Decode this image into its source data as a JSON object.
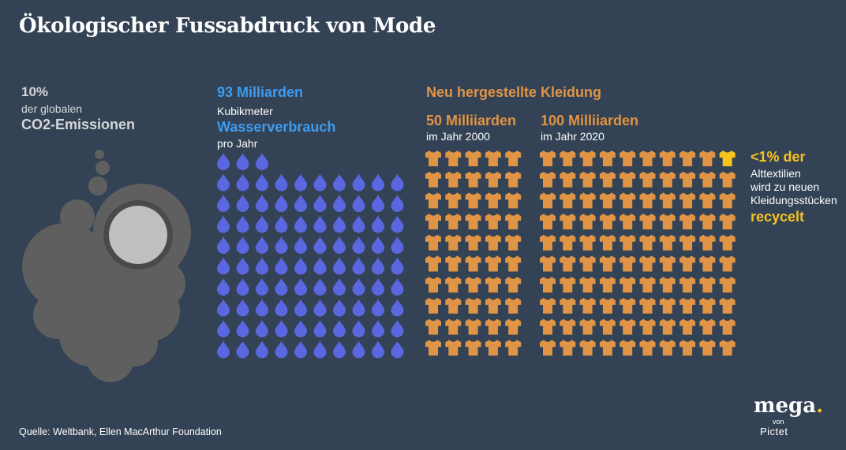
{
  "title": "Ökologischer Fussabdruck von Mode",
  "co2": {
    "percent": "10%",
    "subtitle": "der globalen",
    "label": "CO2-Emissionen",
    "icon": "smoke-cloud-icon"
  },
  "water": {
    "amount": "93 Milliarden",
    "unit": "Kubikmeter",
    "label": "Wasserverbrauch",
    "period": "pro Jahr",
    "icon": "water-drop-icon",
    "drops_top_row": 3,
    "drops_full_rows": 9,
    "drops_per_row": 10
  },
  "clothing": {
    "title": "Neu hergestellte Kleidung",
    "year2000": {
      "value": "50 Milliiarden",
      "label": "im Jahr 2000",
      "columns": 5,
      "rows": 10
    },
    "year2020": {
      "value": "100 Milliiarden",
      "label": "im Jahr 2020",
      "columns": 10,
      "rows": 10
    },
    "icon": "t-shirt-icon"
  },
  "recycling": {
    "percent": "<1% der",
    "line1": "Alttextilien",
    "line2": "wird zu neuen",
    "line3": "Kleidungsstücken",
    "word": "recycelt"
  },
  "colors": {
    "background": "#334254",
    "water": "#3d9cf0",
    "drop": "#5a67e0",
    "clothing": "#e09445",
    "recycle": "#f5c31e",
    "smoke": "#5f5f5f"
  },
  "footer": {
    "source": "Quelle: Weltbank, Ellen MacArthur Foundation",
    "logo": "mega",
    "logo_von": "von",
    "logo_brand": "Pictet"
  }
}
